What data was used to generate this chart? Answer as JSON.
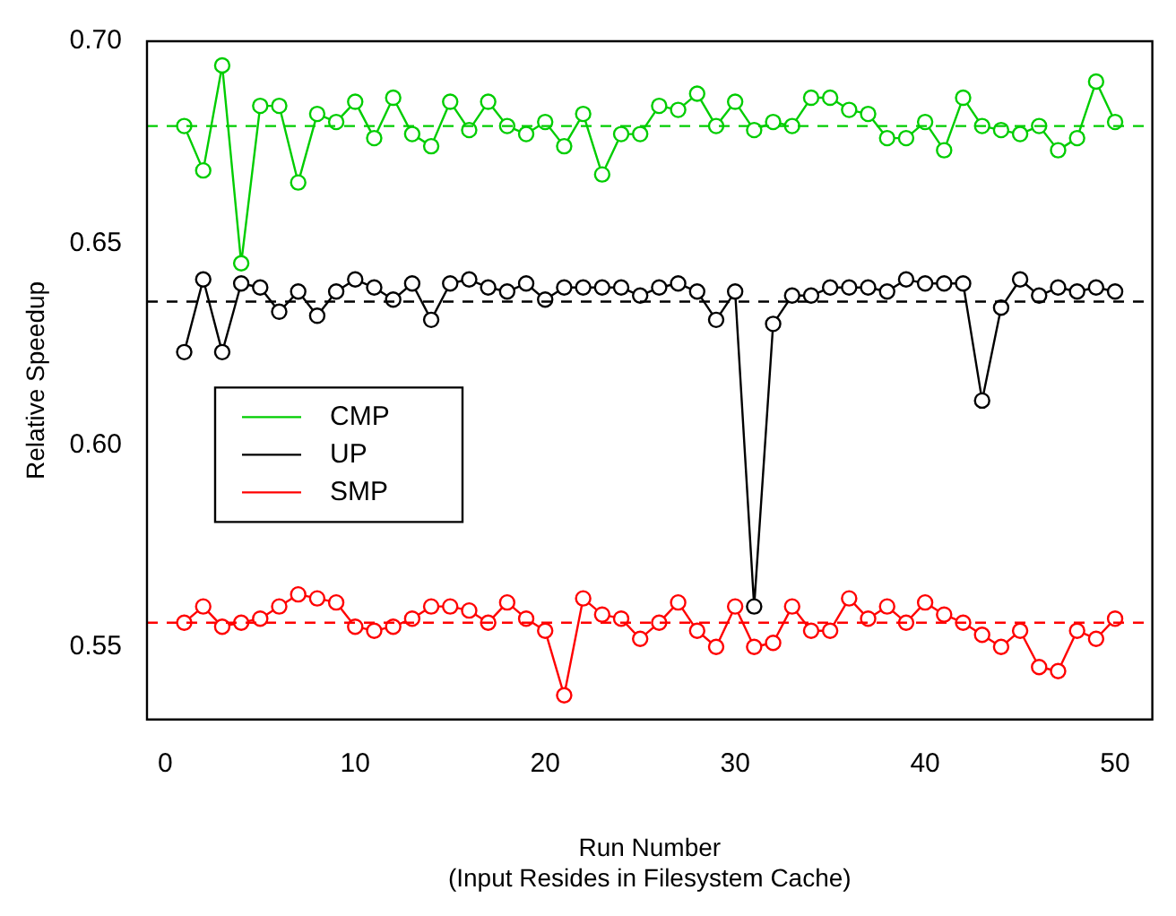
{
  "chart_data": {
    "type": "line",
    "xlabel": "Run Number\n(Input Resides in Filesystem Cache)",
    "ylabel": "Relative Speedup",
    "x": [
      1,
      2,
      3,
      4,
      5,
      6,
      7,
      8,
      9,
      10,
      11,
      12,
      13,
      14,
      15,
      16,
      17,
      18,
      19,
      20,
      21,
      22,
      23,
      24,
      25,
      26,
      27,
      28,
      29,
      30,
      31,
      32,
      33,
      34,
      35,
      36,
      37,
      38,
      39,
      40,
      41,
      42,
      43,
      44,
      45,
      46,
      47,
      48,
      49,
      50
    ],
    "series": [
      {
        "name": "CMP",
        "color": "#00cd00",
        "values": [
          0.679,
          0.668,
          0.694,
          0.645,
          0.684,
          0.684,
          0.665,
          0.682,
          0.68,
          0.685,
          0.676,
          0.686,
          0.677,
          0.674,
          0.685,
          0.678,
          0.685,
          0.679,
          0.677,
          0.68,
          0.674,
          0.682,
          0.667,
          0.677,
          0.677,
          0.684,
          0.683,
          0.687,
          0.679,
          0.685,
          0.678,
          0.68,
          0.679,
          0.686,
          0.686,
          0.683,
          0.682,
          0.676,
          0.676,
          0.68,
          0.673,
          0.686,
          0.679,
          0.678,
          0.677,
          0.679,
          0.673,
          0.676,
          0.69,
          0.68
        ]
      },
      {
        "name": "UP",
        "color": "#000000",
        "values": [
          0.623,
          0.641,
          0.623,
          0.64,
          0.639,
          0.633,
          0.638,
          0.632,
          0.638,
          0.641,
          0.639,
          0.636,
          0.64,
          0.631,
          0.64,
          0.641,
          0.639,
          0.638,
          0.64,
          0.636,
          0.639,
          0.639,
          0.639,
          0.639,
          0.637,
          0.639,
          0.64,
          0.638,
          0.631,
          0.638,
          0.56,
          0.63,
          0.637,
          0.637,
          0.639,
          0.639,
          0.639,
          0.638,
          0.641,
          0.64,
          0.64,
          0.64,
          0.611,
          0.634,
          0.641,
          0.637,
          0.639,
          0.638,
          0.639,
          0.638
        ]
      },
      {
        "name": "SMP",
        "color": "#ff0000",
        "values": [
          0.556,
          0.56,
          0.555,
          0.556,
          0.557,
          0.56,
          0.563,
          0.562,
          0.561,
          0.555,
          0.554,
          0.555,
          0.557,
          0.56,
          0.56,
          0.559,
          0.556,
          0.561,
          0.557,
          0.554,
          0.538,
          0.562,
          0.558,
          0.557,
          0.552,
          0.556,
          0.561,
          0.554,
          0.55,
          0.56,
          0.55,
          0.551,
          0.56,
          0.554,
          0.554,
          0.562,
          0.557,
          0.56,
          0.556,
          0.561,
          0.558,
          0.556,
          0.553,
          0.55,
          0.554,
          0.545,
          0.544,
          0.554,
          0.552,
          0.557
        ]
      }
    ],
    "ref_lines": [
      {
        "axis": "y",
        "value": 0.679,
        "color": "#00cd00",
        "line_style": "dashed"
      },
      {
        "axis": "y",
        "value": 0.6355,
        "color": "#000000",
        "line_style": "dashed"
      },
      {
        "axis": "y",
        "value": 0.556,
        "color": "#ff0000",
        "line_style": "dashed"
      }
    ],
    "xlim": [
      -0.96,
      51.96
    ],
    "xticks": [
      0,
      10,
      20,
      30,
      40,
      50
    ],
    "ylim": [
      0.532,
      0.7
    ],
    "yticks": [
      {
        "value": 0.55,
        "label": "0.55"
      },
      {
        "value": 0.6,
        "label": "0.60"
      },
      {
        "value": 0.65,
        "label": "0.65"
      },
      {
        "value": 0.7,
        "label": "0.70"
      }
    ],
    "grid": false,
    "legend": "left",
    "marker": "circle",
    "line_style": "solid"
  }
}
